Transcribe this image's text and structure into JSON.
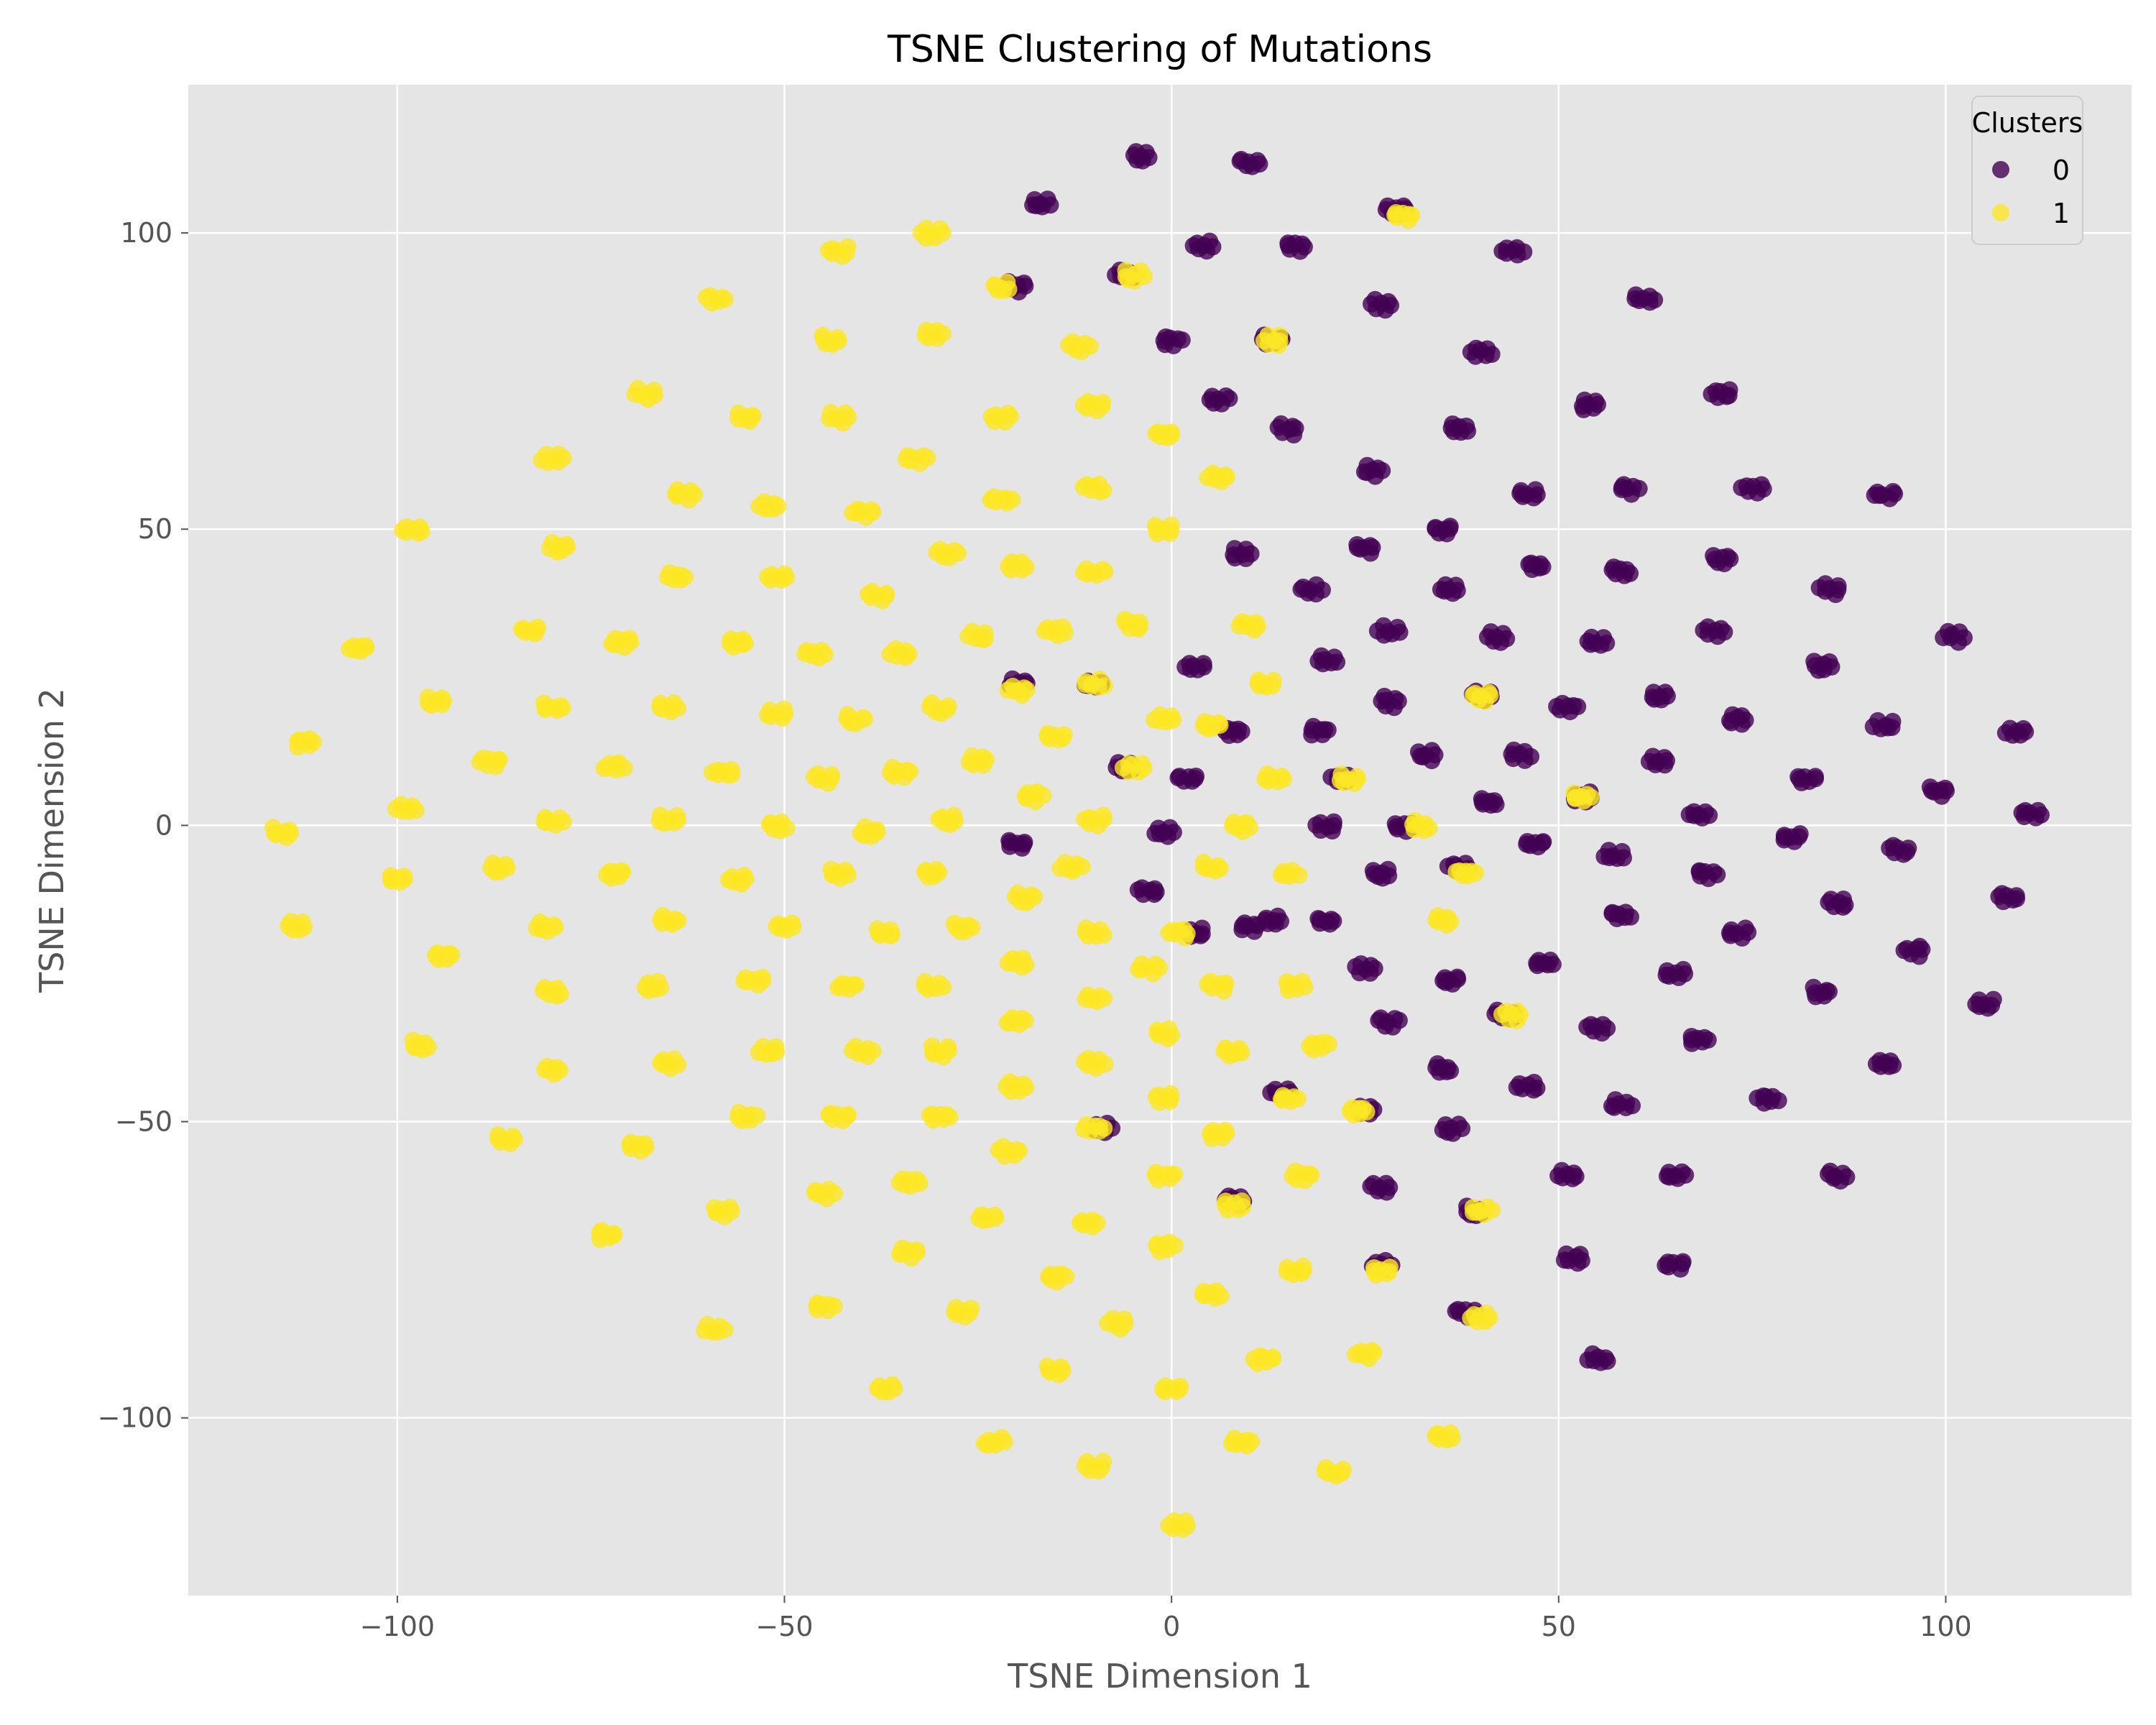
{
  "chart_data": {
    "type": "scatter",
    "title": "TSNE Clustering of Mutations",
    "xlabel": "TSNE Dimension 1",
    "ylabel": "TSNE Dimension 2",
    "xlim": [
      -127,
      124
    ],
    "ylim": [
      -130,
      125
    ],
    "xticks": [
      -100,
      -50,
      0,
      50,
      100
    ],
    "yticks": [
      -100,
      -50,
      0,
      50,
      100
    ],
    "xtick_labels": [
      "−100",
      "−50",
      "0",
      "50",
      "100"
    ],
    "ytick_labels": [
      "−100",
      "−50",
      "0",
      "50",
      "100"
    ],
    "grid": true,
    "legend": {
      "title": "Clusters",
      "location": "upper right",
      "entries": [
        {
          "label": "0",
          "color": "#440154"
        },
        {
          "label": "1",
          "color": "#fde725"
        }
      ]
    },
    "background_color": "#e5e5e5",
    "series": [
      {
        "name": "0",
        "color": "#440154",
        "points": [
          [
            -17,
            105
          ],
          [
            -4,
            113
          ],
          [
            10,
            112
          ],
          [
            4,
            98
          ],
          [
            16,
            98
          ],
          [
            29,
            104
          ],
          [
            44,
            97
          ],
          [
            -20,
            91
          ],
          [
            -6,
            93
          ],
          [
            27,
            88
          ],
          [
            61,
            89
          ],
          [
            0,
            82
          ],
          [
            13,
            82
          ],
          [
            40,
            80
          ],
          [
            6,
            72
          ],
          [
            15,
            67
          ],
          [
            37,
            67
          ],
          [
            54,
            71
          ],
          [
            71,
            73
          ],
          [
            26,
            60
          ],
          [
            35,
            50
          ],
          [
            46,
            56
          ],
          [
            59,
            57
          ],
          [
            75,
            57
          ],
          [
            92,
            56
          ],
          [
            9,
            46
          ],
          [
            25,
            47
          ],
          [
            36,
            40
          ],
          [
            47,
            44
          ],
          [
            58,
            43
          ],
          [
            71,
            45
          ],
          [
            85,
            40
          ],
          [
            18,
            40
          ],
          [
            20,
            28
          ],
          [
            28,
            33
          ],
          [
            42,
            32
          ],
          [
            55,
            31
          ],
          [
            70,
            33
          ],
          [
            84,
            27
          ],
          [
            101,
            32
          ],
          [
            3,
            27
          ],
          [
            19,
            16
          ],
          [
            28,
            21
          ],
          [
            40,
            22
          ],
          [
            51,
            20
          ],
          [
            63,
            22
          ],
          [
            73,
            18
          ],
          [
            92,
            17
          ],
          [
            109,
            16
          ],
          [
            -20,
            24
          ],
          [
            -10,
            24
          ],
          [
            8,
            16
          ],
          [
            22,
            8
          ],
          [
            33,
            12
          ],
          [
            45,
            12
          ],
          [
            53,
            5
          ],
          [
            63,
            11
          ],
          [
            82,
            8
          ],
          [
            99,
            6
          ],
          [
            -6,
            10
          ],
          [
            2,
            8
          ],
          [
            20,
            0
          ],
          [
            30,
            0
          ],
          [
            41,
            4
          ],
          [
            57,
            -5
          ],
          [
            68,
            2
          ],
          [
            80,
            -2
          ],
          [
            94,
            -4
          ],
          [
            111,
            2
          ],
          [
            -20,
            -3
          ],
          [
            -1,
            -1
          ],
          [
            13,
            -16
          ],
          [
            27,
            -8
          ],
          [
            37,
            -7
          ],
          [
            47,
            -3
          ],
          [
            58,
            -15
          ],
          [
            69,
            -8
          ],
          [
            86,
            -13
          ],
          [
            108,
            -12
          ],
          [
            -3,
            -11
          ],
          [
            3,
            -18
          ],
          [
            10,
            -17
          ],
          [
            20,
            -16
          ],
          [
            25,
            -24
          ],
          [
            36,
            -26
          ],
          [
            48,
            -23
          ],
          [
            65,
            -25
          ],
          [
            73,
            -18
          ],
          [
            84,
            -28
          ],
          [
            96,
            -21
          ],
          [
            105,
            -30
          ],
          [
            28,
            -33
          ],
          [
            35,
            -41
          ],
          [
            43,
            -32
          ],
          [
            55,
            -34
          ],
          [
            68,
            -36
          ],
          [
            77,
            -46
          ],
          [
            92,
            -40
          ],
          [
            14,
            -45
          ],
          [
            25,
            -48
          ],
          [
            36,
            -51
          ],
          [
            46,
            -44
          ],
          [
            58,
            -47
          ],
          [
            51,
            -59
          ],
          [
            65,
            -59
          ],
          [
            86,
            -59
          ],
          [
            8,
            -63
          ],
          [
            27,
            -61
          ],
          [
            39,
            -65
          ],
          [
            52,
            -73
          ],
          [
            65,
            -74
          ],
          [
            27,
            -74
          ],
          [
            38,
            -82
          ],
          [
            55,
            -90
          ],
          [
            -9,
            -51
          ]
        ]
      },
      {
        "name": "1",
        "color": "#fde725",
        "points": [
          [
            -31,
            100
          ],
          [
            -43,
            97
          ],
          [
            -59,
            89
          ],
          [
            -22,
            91
          ],
          [
            -44,
            82
          ],
          [
            -31,
            83
          ],
          [
            -12,
            81
          ],
          [
            -68,
            73
          ],
          [
            -43,
            69
          ],
          [
            -55,
            69
          ],
          [
            -22,
            69
          ],
          [
            -10,
            71
          ],
          [
            -33,
            62
          ],
          [
            -80,
            62
          ],
          [
            -1,
            66
          ],
          [
            -63,
            56
          ],
          [
            -52,
            54
          ],
          [
            -22,
            55
          ],
          [
            -10,
            57
          ],
          [
            6,
            59
          ],
          [
            -98,
            50
          ],
          [
            -40,
            53
          ],
          [
            -1,
            50
          ],
          [
            -79,
            47
          ],
          [
            -29,
            46
          ],
          [
            -64,
            42
          ],
          [
            -51,
            42
          ],
          [
            -20,
            44
          ],
          [
            -10,
            43
          ],
          [
            -38,
            39
          ],
          [
            -105,
            30
          ],
          [
            -83,
            33
          ],
          [
            -71,
            31
          ],
          [
            -56,
            31
          ],
          [
            -46,
            29
          ],
          [
            -35,
            29
          ],
          [
            -25,
            32
          ],
          [
            -15,
            33
          ],
          [
            -5,
            34
          ],
          [
            10,
            34
          ],
          [
            -112,
            14
          ],
          [
            -95,
            21
          ],
          [
            -80,
            20
          ],
          [
            -65,
            20
          ],
          [
            -51,
            19
          ],
          [
            -41,
            18
          ],
          [
            -30,
            20
          ],
          [
            -20,
            23
          ],
          [
            -10,
            24
          ],
          [
            -1,
            18
          ],
          [
            12,
            24
          ],
          [
            -88,
            11
          ],
          [
            -72,
            10
          ],
          [
            -58,
            9
          ],
          [
            -45,
            8
          ],
          [
            -35,
            9
          ],
          [
            -25,
            11
          ],
          [
            -15,
            15
          ],
          [
            -5,
            10
          ],
          [
            13,
            8
          ],
          [
            5,
            17
          ],
          [
            -115,
            -1
          ],
          [
            -99,
            3
          ],
          [
            -80,
            1
          ],
          [
            -65,
            1
          ],
          [
            -51,
            0
          ],
          [
            -39,
            -1
          ],
          [
            -29,
            1
          ],
          [
            -18,
            5
          ],
          [
            -10,
            1
          ],
          [
            9,
            0
          ],
          [
            32,
            0
          ],
          [
            -100,
            -9
          ],
          [
            -87,
            -7
          ],
          [
            -72,
            -8
          ],
          [
            -56,
            -9
          ],
          [
            -43,
            -8
          ],
          [
            -31,
            -8
          ],
          [
            -13,
            -7
          ],
          [
            5,
            -7
          ],
          [
            15,
            -8
          ],
          [
            38,
            -8
          ],
          [
            -113,
            -17
          ],
          [
            -81,
            -17
          ],
          [
            -65,
            -16
          ],
          [
            -50,
            -17
          ],
          [
            -37,
            -18
          ],
          [
            -27,
            -17
          ],
          [
            -19,
            -12
          ],
          [
            -10,
            -18
          ],
          [
            1,
            -18
          ],
          [
            35,
            -16
          ],
          [
            -94,
            -22
          ],
          [
            -80,
            -28
          ],
          [
            -67,
            -27
          ],
          [
            -54,
            -26
          ],
          [
            -42,
            -27
          ],
          [
            -31,
            -27
          ],
          [
            -20,
            -23
          ],
          [
            -10,
            -29
          ],
          [
            -3,
            -24
          ],
          [
            6,
            -27
          ],
          [
            16,
            -27
          ],
          [
            -97,
            -37
          ],
          [
            -80,
            -41
          ],
          [
            -65,
            -40
          ],
          [
            -52,
            -38
          ],
          [
            -40,
            -38
          ],
          [
            -30,
            -38
          ],
          [
            -20,
            -33
          ],
          [
            -10,
            -40
          ],
          [
            -1,
            -35
          ],
          [
            8,
            -38
          ],
          [
            19,
            -37
          ],
          [
            -86,
            -53
          ],
          [
            -69,
            -54
          ],
          [
            -55,
            -49
          ],
          [
            -43,
            -49
          ],
          [
            -30,
            -49
          ],
          [
            -20,
            -44
          ],
          [
            -1,
            -46
          ],
          [
            6,
            -52
          ],
          [
            15,
            -46
          ],
          [
            24,
            -48
          ],
          [
            -73,
            -69
          ],
          [
            -58,
            -65
          ],
          [
            -45,
            -62
          ],
          [
            -34,
            -60
          ],
          [
            -21,
            -55
          ],
          [
            -1,
            -59
          ],
          [
            17,
            -59
          ],
          [
            -11,
            -67
          ],
          [
            8,
            -64
          ],
          [
            40,
            -65
          ],
          [
            -59,
            -85
          ],
          [
            -45,
            -81
          ],
          [
            -34,
            -72
          ],
          [
            -24,
            -66
          ],
          [
            -15,
            -76
          ],
          [
            -1,
            -71
          ],
          [
            5,
            -79
          ],
          [
            16,
            -75
          ],
          [
            27,
            -75
          ],
          [
            -37,
            -95
          ],
          [
            -27,
            -82
          ],
          [
            -15,
            -92
          ],
          [
            -7,
            -84
          ],
          [
            0,
            -95
          ],
          [
            12,
            -90
          ],
          [
            25,
            -89
          ],
          [
            40,
            -83
          ],
          [
            -23,
            -104
          ],
          [
            -10,
            -108
          ],
          [
            9,
            -104
          ],
          [
            21,
            -109
          ],
          [
            35,
            -103
          ],
          [
            1,
            -118
          ],
          [
            44,
            -32
          ],
          [
            53,
            5
          ],
          [
            40,
            22
          ],
          [
            -10,
            -51
          ],
          [
            23,
            8
          ],
          [
            30,
            103
          ],
          [
            13,
            82
          ],
          [
            -5,
            93
          ]
        ]
      }
    ]
  }
}
